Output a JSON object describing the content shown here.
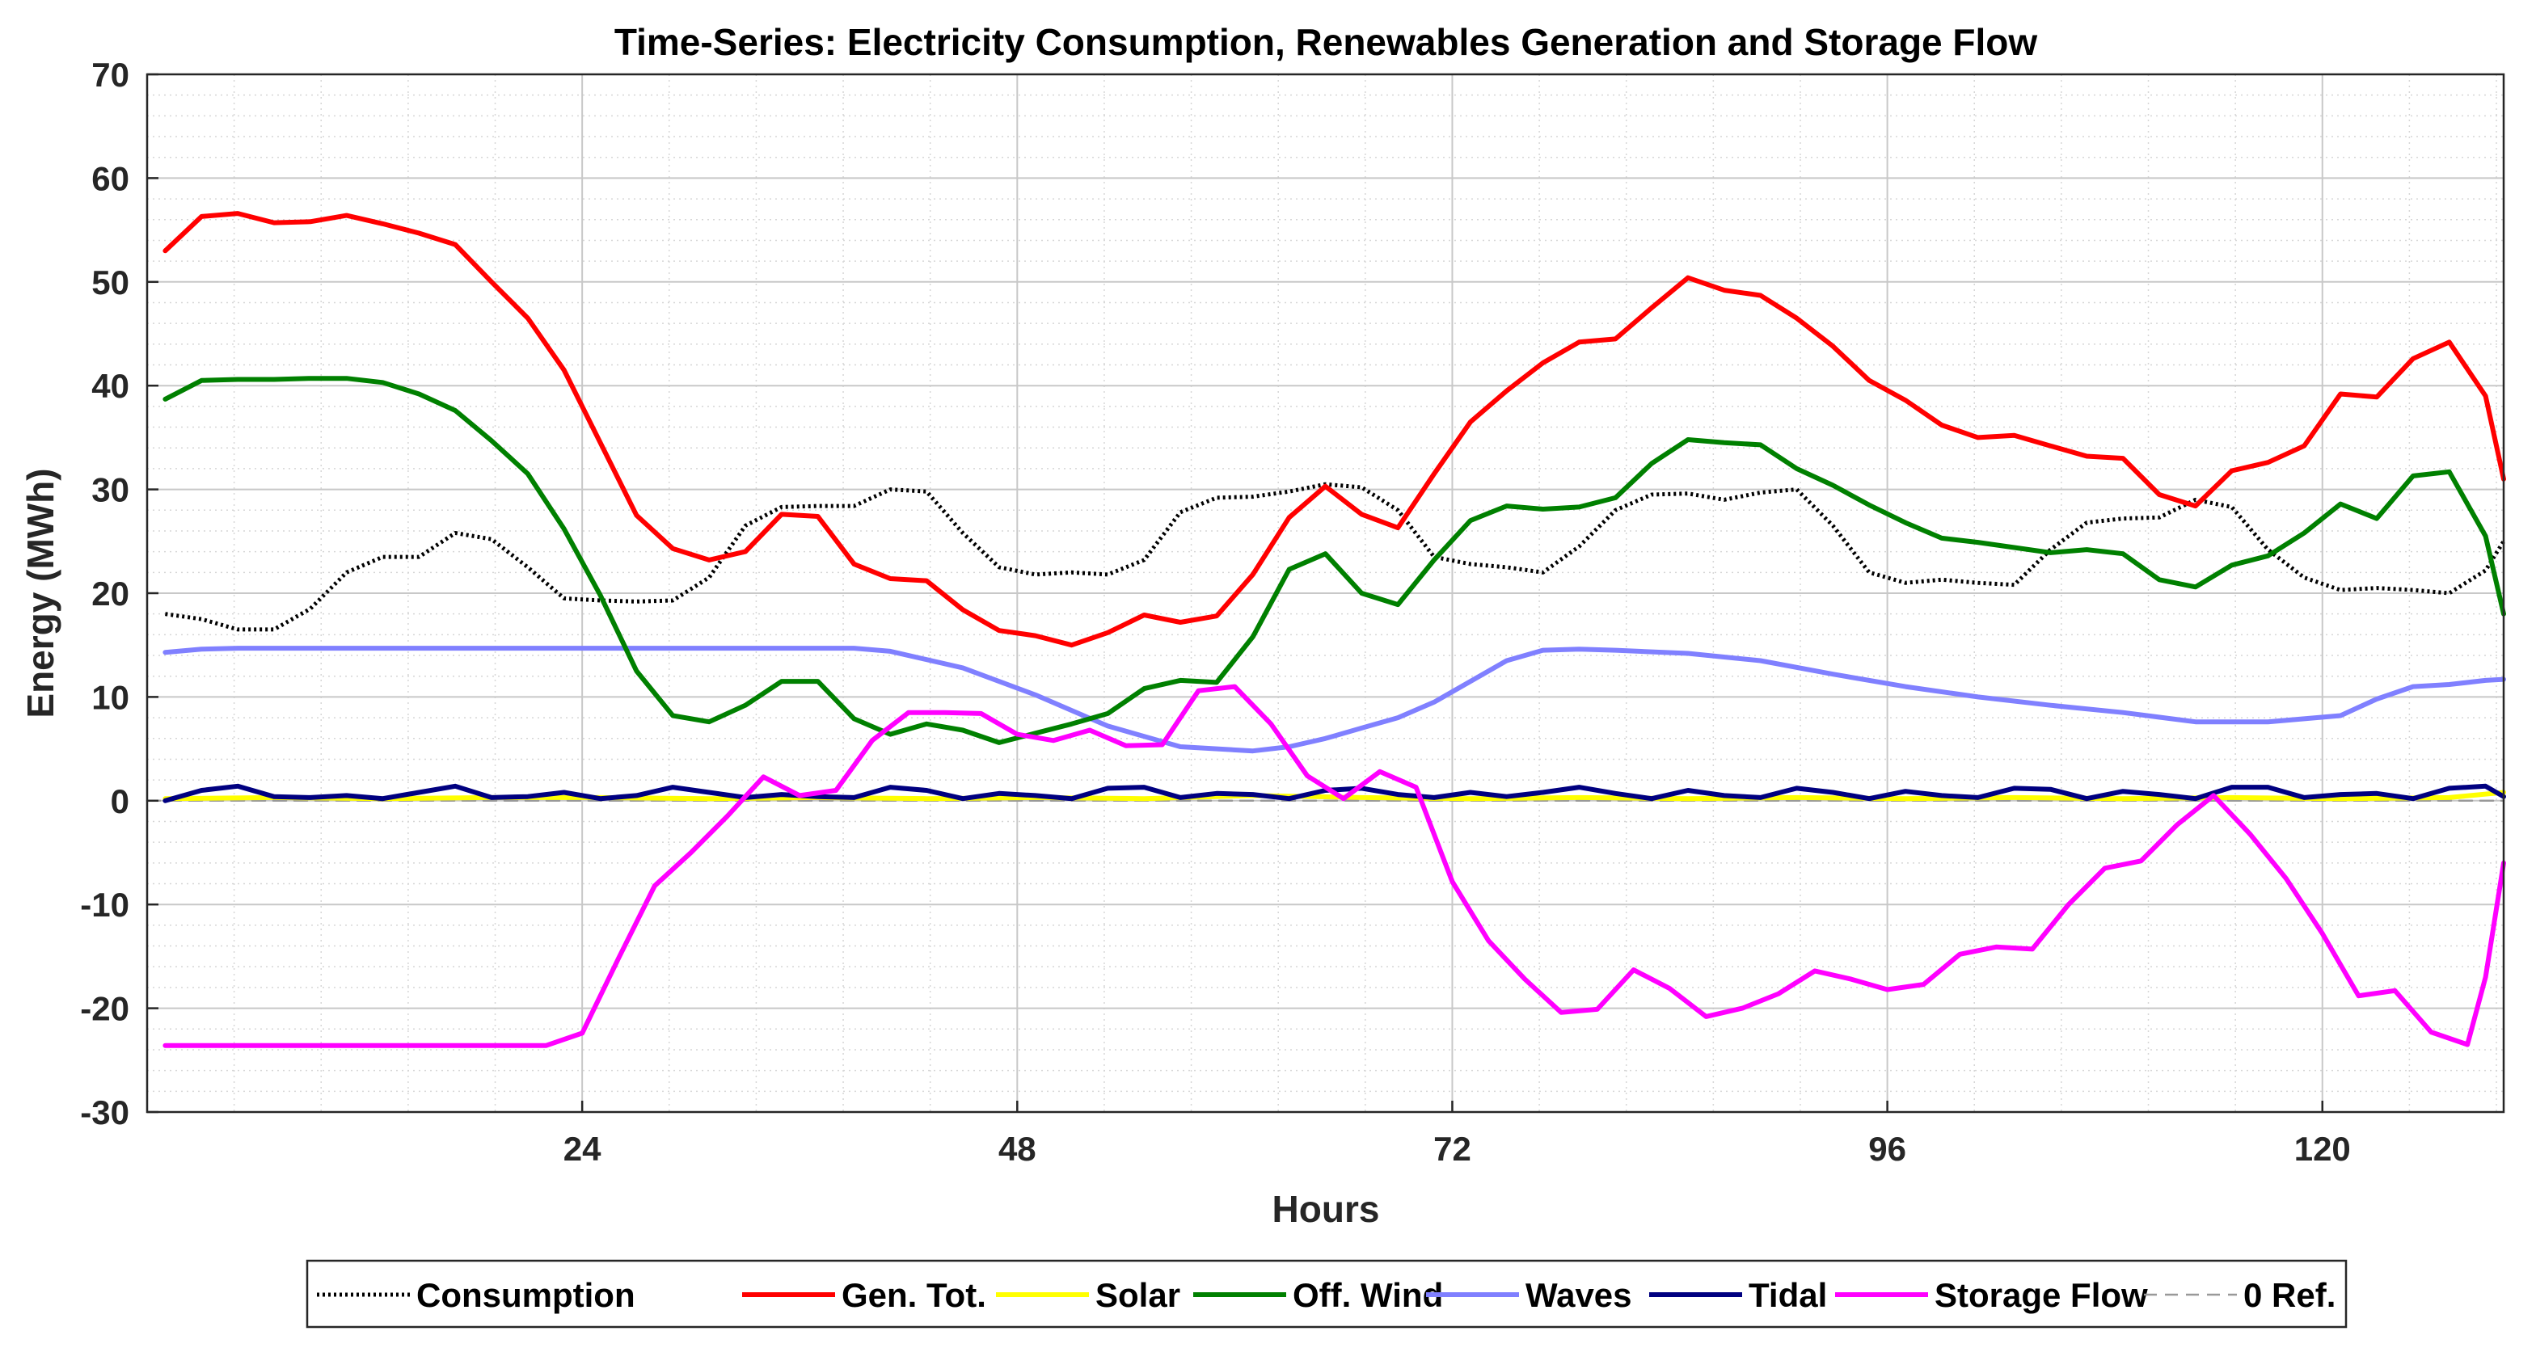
{
  "chart_data": {
    "type": "line",
    "title": "Time-Series: Electricity Consumption, Renewables Generation and Storage Flow",
    "xlabel": "Hours",
    "ylabel": "Energy (MWh)",
    "xlim": [
      0,
      130
    ],
    "ylim": [
      -30,
      70
    ],
    "xticks": [
      24,
      48,
      72,
      96,
      120
    ],
    "yticks": [
      -30,
      -20,
      -10,
      0,
      10,
      20,
      30,
      40,
      50,
      60,
      70
    ],
    "grid": true,
    "legend_position": "bottom",
    "series": [
      {
        "name": "Consumption",
        "color": "#000000",
        "style": "dotted",
        "x": [
          1,
          3,
          5,
          7,
          9,
          11,
          13,
          15,
          17,
          19,
          21,
          23,
          25,
          27,
          29,
          31,
          33,
          35,
          37,
          39,
          41,
          43,
          45,
          47,
          49,
          51,
          53,
          55,
          57,
          59,
          61,
          63,
          65,
          67,
          69,
          71,
          73,
          75,
          77,
          79,
          81,
          83,
          85,
          87,
          89,
          91,
          93,
          95,
          97,
          99,
          101,
          103,
          105,
          107,
          109,
          111,
          113,
          115,
          117,
          119,
          121,
          123,
          125,
          127,
          129,
          130
        ],
        "y": [
          18,
          17.5,
          16.5,
          16.5,
          18.5,
          22,
          23.5,
          23.5,
          25.8,
          25.2,
          22.5,
          19.5,
          19.3,
          19.2,
          19.3,
          21.5,
          26.5,
          28.3,
          28.4,
          28.4,
          30,
          29.8,
          25.8,
          22.5,
          21.8,
          22,
          21.8,
          23.2,
          27.8,
          29.2,
          29.3,
          29.8,
          30.5,
          30.2,
          28,
          23.5,
          22.8,
          22.5,
          22,
          24.5,
          28,
          29.5,
          29.6,
          29,
          29.7,
          30,
          26.5,
          22,
          21,
          21.3,
          21,
          20.8,
          24.2,
          26.8,
          27.2,
          27.3,
          29,
          28.3,
          24.2,
          21.5,
          20.3,
          20.5,
          20.3,
          20,
          22.2,
          25
        ]
      },
      {
        "name": "Gen. Tot.",
        "color": "#ff0000",
        "style": "solid",
        "x": [
          1,
          3,
          5,
          7,
          9,
          11,
          13,
          15,
          17,
          19,
          21,
          23,
          25,
          27,
          29,
          31,
          33,
          35,
          37,
          39,
          41,
          43,
          45,
          47,
          49,
          51,
          53,
          55,
          57,
          59,
          61,
          63,
          65,
          67,
          69,
          71,
          73,
          75,
          77,
          79,
          81,
          83,
          85,
          87,
          89,
          91,
          93,
          95,
          97,
          99,
          101,
          103,
          105,
          107,
          109,
          111,
          113,
          115,
          117,
          119,
          121,
          123,
          125,
          127,
          129,
          130
        ],
        "y": [
          53,
          56.3,
          56.6,
          55.7,
          55.8,
          56.4,
          55.6,
          54.7,
          53.6,
          50,
          46.5,
          41.5,
          34.5,
          27.5,
          24.3,
          23.2,
          24,
          27.6,
          27.4,
          22.8,
          21.4,
          21.2,
          18.4,
          16.4,
          15.9,
          15,
          16.2,
          17.9,
          17.2,
          17.8,
          21.8,
          27.3,
          30.3,
          27.6,
          26.3,
          31.5,
          36.5,
          39.5,
          42.2,
          44.2,
          44.5,
          47.5,
          50.4,
          49.2,
          48.7,
          46.5,
          43.8,
          40.5,
          38.6,
          36.2,
          35,
          35.2,
          34.2,
          33.2,
          33,
          29.5,
          28.4,
          31.8,
          32.6,
          34.2,
          39.2,
          38.9,
          42.6,
          44.2,
          39,
          31
        ]
      },
      {
        "name": "Solar",
        "color": "#ffff00",
        "style": "solid",
        "x": [
          1,
          7,
          13,
          19,
          25,
          31,
          37,
          43,
          49,
          55,
          61,
          67,
          73,
          79,
          85,
          91,
          97,
          103,
          109,
          115,
          121,
          127,
          130
        ],
        "y": [
          0.2,
          0.3,
          0.2,
          0.3,
          0.3,
          0.2,
          0.3,
          0.2,
          0.3,
          0.2,
          0.5,
          0.3,
          0.2,
          0.3,
          0.2,
          0.3,
          0.2,
          0.3,
          0.2,
          0.3,
          0.2,
          0.3,
          0.8
        ]
      },
      {
        "name": "Off. Wind",
        "color": "#008000",
        "style": "solid",
        "x": [
          1,
          3,
          5,
          7,
          9,
          11,
          13,
          15,
          17,
          19,
          21,
          23,
          25,
          27,
          29,
          31,
          33,
          35,
          37,
          39,
          41,
          43,
          45,
          47,
          49,
          51,
          53,
          55,
          57,
          59,
          61,
          63,
          65,
          67,
          69,
          71,
          73,
          75,
          77,
          79,
          81,
          83,
          85,
          87,
          89,
          91,
          93,
          95,
          97,
          99,
          101,
          103,
          105,
          107,
          109,
          111,
          113,
          115,
          117,
          119,
          121,
          123,
          125,
          127,
          129,
          130
        ],
        "y": [
          38.7,
          40.5,
          40.6,
          40.6,
          40.7,
          40.7,
          40.3,
          39.2,
          37.6,
          34.7,
          31.5,
          26.2,
          19.8,
          12.5,
          8.2,
          7.6,
          9.2,
          11.5,
          11.5,
          7.9,
          6.4,
          7.4,
          6.8,
          5.6,
          6.5,
          7.4,
          8.4,
          10.8,
          11.6,
          11.4,
          15.8,
          22.3,
          23.8,
          20,
          18.9,
          23.2,
          27,
          28.4,
          28.1,
          28.3,
          29.2,
          32.5,
          34.8,
          34.5,
          34.3,
          32,
          30.4,
          28.5,
          26.8,
          25.3,
          24.9,
          24.4,
          23.9,
          24.2,
          23.8,
          21.3,
          20.6,
          22.7,
          23.6,
          25.8,
          28.6,
          27.2,
          31.3,
          31.7,
          25.5,
          18
        ]
      },
      {
        "name": "Waves",
        "color": "#8080ff",
        "style": "solid",
        "x": [
          1,
          3,
          5,
          10,
          15,
          20,
          25,
          30,
          35,
          39,
          41,
          45,
          49,
          53,
          57,
          61,
          63,
          65,
          67,
          69,
          71,
          73,
          75,
          77,
          79,
          81,
          85,
          89,
          93,
          97,
          101,
          105,
          109,
          113,
          117,
          121,
          123,
          125,
          127,
          129,
          130
        ],
        "y": [
          14.3,
          14.6,
          14.7,
          14.7,
          14.7,
          14.7,
          14.7,
          14.7,
          14.7,
          14.7,
          14.4,
          12.8,
          10.2,
          7.2,
          5.2,
          4.8,
          5.2,
          6,
          7,
          8,
          9.5,
          11.5,
          13.5,
          14.5,
          14.6,
          14.5,
          14.2,
          13.5,
          12.2,
          11,
          10,
          9.2,
          8.5,
          7.6,
          7.6,
          8.2,
          9.8,
          11,
          11.2,
          11.6,
          11.7
        ]
      },
      {
        "name": "Tidal",
        "color": "#000080",
        "style": "solid",
        "x": [
          1,
          3,
          5,
          7,
          9,
          11,
          13,
          15,
          17,
          19,
          21,
          23,
          25,
          27,
          29,
          31,
          33,
          35,
          37,
          39,
          41,
          43,
          45,
          47,
          49,
          51,
          53,
          55,
          57,
          59,
          61,
          63,
          65,
          67,
          69,
          71,
          73,
          75,
          77,
          79,
          81,
          83,
          85,
          87,
          89,
          91,
          93,
          95,
          97,
          99,
          101,
          103,
          105,
          107,
          109,
          111,
          113,
          115,
          117,
          119,
          121,
          123,
          125,
          127,
          129,
          130
        ],
        "y": [
          0,
          1,
          1.4,
          0.4,
          0.3,
          0.5,
          0.2,
          0.8,
          1.4,
          0.3,
          0.4,
          0.8,
          0.2,
          0.5,
          1.3,
          0.8,
          0.3,
          0.6,
          0.4,
          0.3,
          1.3,
          1,
          0.2,
          0.7,
          0.5,
          0.2,
          1.2,
          1.3,
          0.3,
          0.7,
          0.6,
          0.2,
          1,
          1.2,
          0.6,
          0.3,
          0.8,
          0.4,
          0.8,
          1.3,
          0.7,
          0.2,
          1,
          0.5,
          0.3,
          1.2,
          0.8,
          0.2,
          0.9,
          0.5,
          0.3,
          1.2,
          1.1,
          0.2,
          0.9,
          0.6,
          0.2,
          1.3,
          1.3,
          0.3,
          0.6,
          0.7,
          0.2,
          1.2,
          1.4,
          0.4
        ]
      },
      {
        "name": "Storage Flow",
        "color": "#ff00ff",
        "style": "solid",
        "x": [
          1,
          5,
          10,
          15,
          20,
          22,
          24,
          26,
          28,
          30,
          32,
          34,
          36,
          38,
          40,
          42,
          44,
          46,
          48,
          50,
          52,
          54,
          56,
          58,
          60,
          62,
          64,
          66,
          68,
          70,
          72,
          74,
          76,
          78,
          80,
          82,
          84,
          86,
          88,
          90,
          92,
          94,
          96,
          98,
          100,
          102,
          104,
          106,
          108,
          110,
          112,
          114,
          116,
          118,
          120,
          122,
          124,
          126,
          128,
          129,
          130
        ],
        "y": [
          -23.6,
          -23.6,
          -23.6,
          -23.6,
          -23.6,
          -23.6,
          -22.4,
          -15.2,
          -8.2,
          -5,
          -1.5,
          2.3,
          0.5,
          1,
          5.8,
          8.5,
          8.5,
          8.4,
          6.4,
          5.8,
          6.8,
          5.3,
          5.4,
          10.6,
          11,
          7.4,
          2.4,
          0.2,
          2.8,
          1.3,
          -7.8,
          -13.5,
          -17.2,
          -20.4,
          -20.1,
          -16.3,
          -18.1,
          -20.8,
          -20,
          -18.6,
          -16.4,
          -17.2,
          -18.2,
          -17.7,
          -14.8,
          -14.1,
          -14.3,
          -10,
          -6.5,
          -5.8,
          -2.3,
          0.5,
          -3.2,
          -7.5,
          -12.8,
          -18.8,
          -18.3,
          -22.3,
          -23.5,
          -17,
          -6
        ]
      },
      {
        "name": "0 Ref.",
        "color": "#999999",
        "style": "dashed",
        "x": [
          0,
          130
        ],
        "y": [
          0,
          0
        ]
      }
    ]
  }
}
